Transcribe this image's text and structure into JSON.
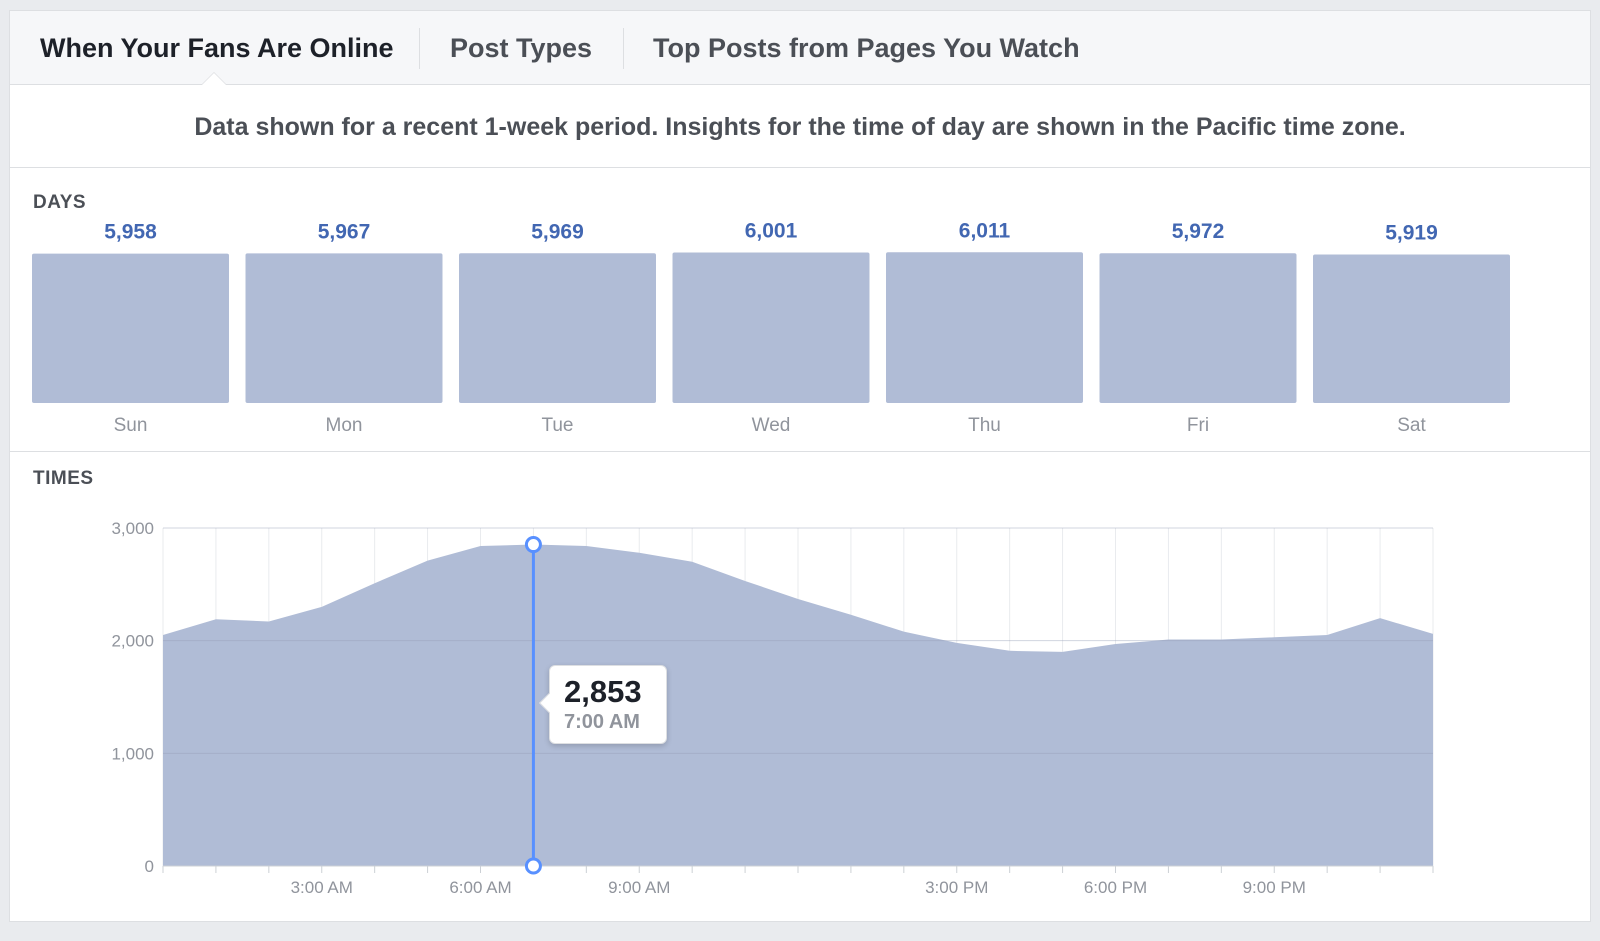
{
  "tabs": [
    {
      "label": "When Your Fans Are Online",
      "active": true
    },
    {
      "label": "Post Types",
      "active": false
    },
    {
      "label": "Top Posts from Pages You Watch",
      "active": false
    }
  ],
  "notice": "Data shown for a recent 1-week period. Insights for the time of day are shown in the Pacific time zone.",
  "days_section": {
    "title": "DAYS"
  },
  "times_section": {
    "title": "TIMES"
  },
  "tooltip": {
    "value": "2,853",
    "time": "7:00 AM"
  },
  "colors": {
    "bar": "#b0bcd6",
    "area": "#b0bcd6",
    "highlight": "#5890ff",
    "value_text": "#4267b2"
  },
  "chart_data": [
    {
      "type": "bar",
      "title": "DAYS",
      "categories": [
        "Sun",
        "Mon",
        "Tue",
        "Wed",
        "Thu",
        "Fri",
        "Sat"
      ],
      "values": [
        5958,
        5967,
        5969,
        6001,
        6011,
        5972,
        5919
      ],
      "value_labels": [
        "5,958",
        "5,967",
        "5,969",
        "6,001",
        "6,011",
        "5,972",
        "5,919"
      ],
      "grid": false
    },
    {
      "type": "area",
      "title": "TIMES",
      "x": [
        "12:00 AM",
        "1:00 AM",
        "2:00 AM",
        "3:00 AM",
        "4:00 AM",
        "5:00 AM",
        "6:00 AM",
        "7:00 AM",
        "8:00 AM",
        "9:00 AM",
        "10:00 AM",
        "11:00 AM",
        "12:00 PM",
        "1:00 PM",
        "2:00 PM",
        "3:00 PM",
        "4:00 PM",
        "5:00 PM",
        "6:00 PM",
        "7:00 PM",
        "8:00 PM",
        "9:00 PM",
        "10:00 PM",
        "11:00 PM",
        "12:00 AM"
      ],
      "values": [
        2050,
        2190,
        2170,
        2300,
        2510,
        2710,
        2840,
        2853,
        2840,
        2780,
        2700,
        2530,
        2370,
        2230,
        2080,
        1980,
        1910,
        1900,
        1970,
        2010,
        2010,
        2030,
        2050,
        2200,
        2060
      ],
      "ylim": [
        0,
        3000
      ],
      "yticks": [
        0,
        1000,
        2000,
        3000
      ],
      "ytick_labels": [
        "0",
        "1,000",
        "2,000",
        "3,000"
      ],
      "xtick_labels": [
        {
          "at": 3,
          "label": "3:00 AM"
        },
        {
          "at": 6,
          "label": "6:00 AM"
        },
        {
          "at": 9,
          "label": "9:00 AM"
        },
        {
          "at": 15,
          "label": "3:00 PM"
        },
        {
          "at": 18,
          "label": "6:00 PM"
        },
        {
          "at": 21,
          "label": "9:00 PM"
        }
      ],
      "highlight": {
        "x_index": 7,
        "value": 2853,
        "label": "7:00 AM"
      },
      "grid": true
    }
  ]
}
